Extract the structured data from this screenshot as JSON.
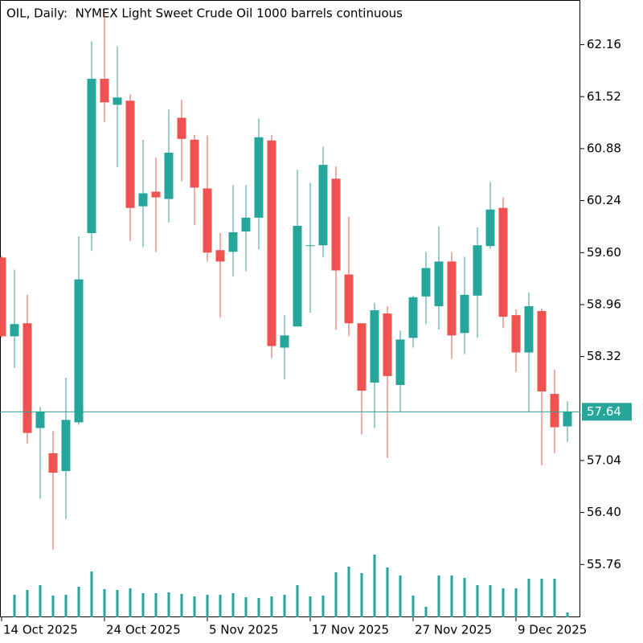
{
  "chart_data": {
    "type": "candlestick",
    "title": "OIL, Daily:  NYMEX Light Sweet Crude Oil 1000 barrels continuous",
    "categories": [
      "14 Oct 2025",
      null,
      null,
      null,
      null,
      null,
      null,
      null,
      "24 Oct 2025",
      null,
      null,
      null,
      null,
      null,
      null,
      null,
      "5 Nov 2025",
      null,
      null,
      null,
      null,
      null,
      null,
      null,
      "17 Nov 2025",
      null,
      null,
      null,
      null,
      null,
      null,
      null,
      "27 Nov 2025",
      null,
      null,
      null,
      null,
      null,
      null,
      null,
      "9 Dec 2025",
      null,
      null,
      null,
      null
    ],
    "open": [
      59.54,
      58.57,
      58.73,
      57.44,
      57.13,
      56.91,
      57.51,
      59.84,
      61.74,
      61.42,
      61.47,
      60.17,
      60.35,
      60.26,
      61.26,
      60.99,
      60.39,
      59.63,
      59.61,
      59.86,
      60.03,
      60.98,
      58.43,
      58.69,
      59.68,
      59.69,
      60.51,
      59.33,
      58.73,
      58.0,
      58.85,
      57.97,
      58.55,
      59.06,
      58.94,
      59.49,
      58.61,
      59.07,
      59.68,
      60.15,
      58.83,
      58.37,
      58.88,
      57.86,
      57.46
    ],
    "high": [
      59.56,
      59.39,
      59.08,
      57.7,
      57.4,
      58.06,
      59.8,
      62.2,
      62.54,
      62.14,
      61.55,
      60.99,
      60.77,
      61.36,
      61.48,
      61.05,
      61.04,
      59.84,
      60.43,
      60.43,
      61.25,
      61.05,
      58.83,
      60.62,
      60.46,
      60.9,
      60.66,
      60.04,
      58.73,
      58.98,
      58.94,
      58.64,
      59.07,
      59.61,
      59.92,
      59.61,
      59.55,
      59.91,
      60.47,
      60.28,
      58.9,
      59.11,
      58.91,
      58.16,
      57.77
    ],
    "low": [
      58.55,
      58.18,
      57.25,
      56.57,
      55.94,
      56.32,
      57.48,
      59.62,
      61.21,
      60.65,
      59.74,
      59.67,
      59.61,
      59.97,
      60.48,
      59.94,
      59.49,
      58.8,
      59.31,
      59.37,
      59.64,
      58.3,
      58.04,
      58.69,
      58.86,
      59.54,
      58.65,
      58.57,
      57.36,
      57.44,
      57.07,
      57.64,
      58.43,
      58.72,
      58.65,
      58.29,
      58.35,
      58.55,
      59.65,
      58.67,
      58.13,
      57.64,
      56.98,
      57.13,
      57.27
    ],
    "close": [
      58.57,
      58.72,
      57.38,
      57.64,
      56.89,
      57.54,
      59.27,
      61.74,
      61.45,
      61.51,
      60.15,
      60.33,
      60.28,
      60.83,
      61.0,
      60.4,
      59.6,
      59.49,
      59.85,
      60.03,
      61.02,
      58.45,
      58.58,
      59.93,
      59.69,
      60.68,
      59.38,
      58.73,
      57.9,
      58.89,
      58.08,
      58.53,
      59.05,
      59.41,
      59.49,
      58.58,
      59.08,
      59.69,
      60.13,
      58.81,
      58.37,
      58.94,
      57.89,
      57.45,
      57.64
    ],
    "volume": [
      null,
      28,
      34,
      40,
      27,
      28,
      38,
      57,
      35,
      34,
      36,
      30,
      30,
      31,
      29,
      26,
      28,
      28,
      30,
      25,
      24,
      26,
      28,
      40,
      26,
      27,
      56,
      63,
      55,
      78,
      62,
      52,
      27,
      13,
      52,
      52,
      49,
      40,
      40,
      36,
      36,
      48,
      48,
      48,
      6
    ],
    "up_color": "#26a69a",
    "down_color": "#ef5350",
    "volume_color": "#26a69a",
    "ylim": [
      55.11,
      62.71
    ],
    "yticks": [
      {
        "value": 55.76,
        "label": "55.76"
      },
      {
        "value": 56.4,
        "label": "56.40"
      },
      {
        "value": 57.04,
        "label": "57.04"
      },
      {
        "value": 58.32,
        "label": "58.32"
      },
      {
        "value": 58.96,
        "label": "58.96"
      },
      {
        "value": 59.6,
        "label": "59.60"
      },
      {
        "value": 60.24,
        "label": "60.24"
      },
      {
        "value": 60.88,
        "label": "60.88"
      },
      {
        "value": 61.52,
        "label": "61.52"
      },
      {
        "value": 62.16,
        "label": "62.16"
      }
    ],
    "grid": false
  }
}
